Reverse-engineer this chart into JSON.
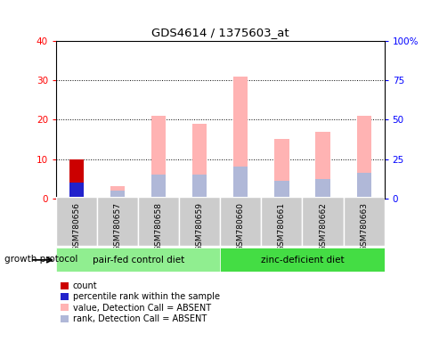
{
  "title": "GDS4614 / 1375603_at",
  "samples": [
    "GSM780656",
    "GSM780657",
    "GSM780658",
    "GSM780659",
    "GSM780660",
    "GSM780661",
    "GSM780662",
    "GSM780663"
  ],
  "count_values": [
    10,
    0,
    0,
    0,
    0,
    0,
    0,
    0
  ],
  "percentile_values": [
    4,
    0,
    0,
    0,
    0,
    0,
    0,
    0
  ],
  "value_absent": [
    0,
    3,
    21,
    19,
    31,
    15,
    17,
    21
  ],
  "rank_absent": [
    0,
    2,
    6,
    6,
    8,
    4.5,
    5,
    6.5
  ],
  "left_ylim": [
    0,
    40
  ],
  "right_ylim": [
    0,
    100
  ],
  "left_yticks": [
    0,
    10,
    20,
    30,
    40
  ],
  "right_yticks": [
    0,
    25,
    50,
    75,
    100
  ],
  "right_yticklabels": [
    "0",
    "25",
    "50",
    "75",
    "100%"
  ],
  "group1_label": "pair-fed control diet",
  "group2_label": "zinc-deficient diet",
  "group_label_prefix": "growth protocol",
  "color_count": "#cc0000",
  "color_percentile": "#2222cc",
  "color_value_absent": "#ffb3b3",
  "color_rank_absent": "#b0b8d8",
  "bg_color": "#cccccc",
  "group1_color": "#90ee90",
  "group2_color": "#44dd44",
  "legend_labels": [
    "count",
    "percentile rank within the sample",
    "value, Detection Call = ABSENT",
    "rank, Detection Call = ABSENT"
  ],
  "legend_colors": [
    "#cc0000",
    "#2222cc",
    "#ffb3b3",
    "#b0b8d8"
  ]
}
